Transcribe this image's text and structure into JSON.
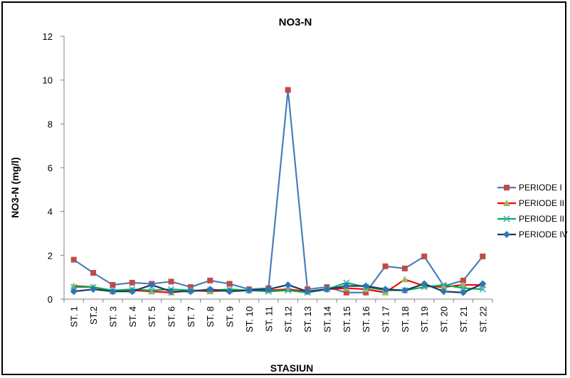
{
  "chart_data": {
    "type": "line",
    "title": "NO3-N",
    "xlabel": "STASIUN",
    "ylabel": "NO3-N (mg/l)",
    "ylim": [
      0,
      12
    ],
    "yticks": [
      0,
      2,
      4,
      6,
      8,
      10,
      12
    ],
    "grid": false,
    "legend": "right",
    "categories": [
      "ST. 1",
      "ST.2",
      "ST. 3",
      "ST. 4",
      "ST. 5",
      "ST. 6",
      "ST. 7",
      "ST. 8",
      "ST. 9",
      "ST. 10",
      "ST. 11",
      "ST. 12",
      "ST. 13",
      "ST. 14",
      "ST. 15",
      "ST. 16",
      "ST. 17",
      "ST. 18",
      "ST. 19",
      "ST. 20",
      "ST. 21",
      "ST. 22"
    ],
    "series": [
      {
        "name": "PERIODE I",
        "color": "#4a7ebb",
        "marker": "square",
        "marker_color": "#be4b48",
        "values": [
          1.8,
          1.2,
          0.65,
          0.75,
          0.7,
          0.8,
          0.55,
          0.85,
          0.7,
          0.45,
          0.5,
          9.55,
          0.45,
          0.55,
          0.3,
          0.3,
          1.5,
          1.4,
          1.95,
          0.6,
          0.85,
          1.95
        ]
      },
      {
        "name": "PERIODE II",
        "color": "#ff0000",
        "marker": "triangle",
        "marker_color": "#9bbb59",
        "values": [
          0.6,
          0.55,
          0.35,
          0.4,
          0.35,
          0.3,
          0.4,
          0.35,
          0.4,
          0.4,
          0.4,
          0.45,
          0.35,
          0.45,
          0.5,
          0.45,
          0.3,
          0.9,
          0.6,
          0.55,
          0.65,
          0.65
        ]
      },
      {
        "name": "PERIODE III",
        "color": "#00b050",
        "marker": "x",
        "marker_color": "#4bacc6",
        "values": [
          0.55,
          0.55,
          0.4,
          0.45,
          0.4,
          0.45,
          0.4,
          0.4,
          0.45,
          0.4,
          0.35,
          0.4,
          0.3,
          0.45,
          0.75,
          0.55,
          0.4,
          0.4,
          0.55,
          0.65,
          0.5,
          0.45
        ]
      },
      {
        "name": "PERIODE IV",
        "color": "#1f3864",
        "marker": "diamond",
        "marker_color": "#2e75b6",
        "values": [
          0.35,
          0.45,
          0.35,
          0.35,
          0.65,
          0.35,
          0.35,
          0.45,
          0.35,
          0.4,
          0.45,
          0.65,
          0.35,
          0.45,
          0.6,
          0.6,
          0.45,
          0.4,
          0.7,
          0.35,
          0.3,
          0.7
        ]
      }
    ]
  }
}
